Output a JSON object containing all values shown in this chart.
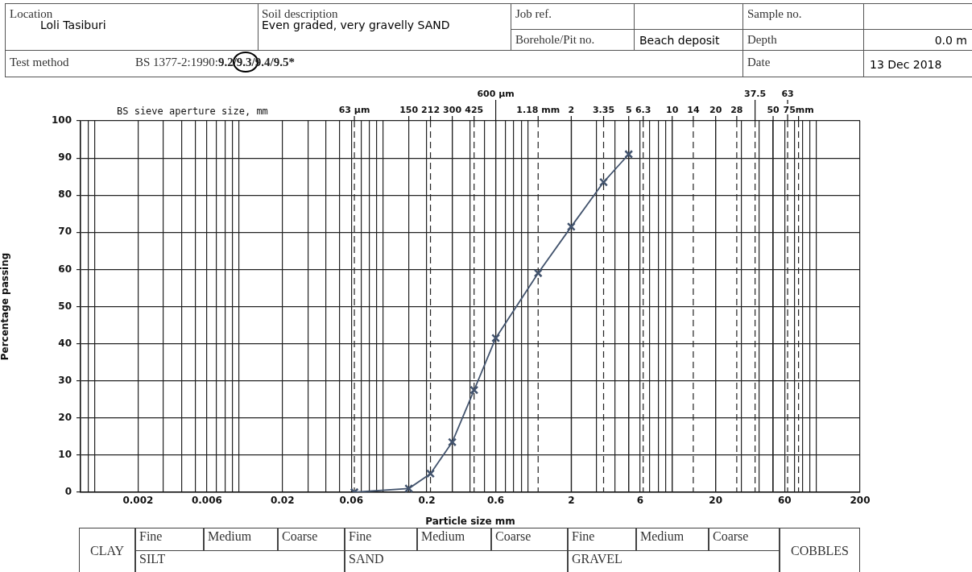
{
  "chart_data": {
    "type": "line",
    "xlabel": "Particle size mm",
    "ylabel": "Percentage passing",
    "log": "x",
    "grid": true,
    "legend": false,
    "marker": "cross",
    "line_style": "solid",
    "xlim": [
      0.0008,
      200
    ],
    "ylim": [
      0,
      100
    ],
    "xticks": [
      {
        "value": 0.0008,
        "label": null
      },
      {
        "value": 0.0009,
        "label": null
      },
      {
        "value": 0.001,
        "label": null
      },
      0.002,
      {
        "value": 0.003,
        "label": null
      },
      {
        "value": 0.004,
        "label": null
      },
      {
        "value": 0.005,
        "label": null
      },
      0.006,
      {
        "value": 0.007,
        "label": null
      },
      {
        "value": 0.008,
        "label": null
      },
      {
        "value": 0.009,
        "label": null
      },
      {
        "value": 0.01,
        "label": null
      },
      0.02,
      {
        "value": 0.03,
        "label": null
      },
      {
        "value": 0.04,
        "label": null
      },
      {
        "value": 0.05,
        "label": null
      },
      0.06,
      {
        "value": 0.07,
        "label": null
      },
      {
        "value": 0.08,
        "label": null
      },
      {
        "value": 0.09,
        "label": null
      },
      {
        "value": 0.1,
        "label": null
      },
      0.2,
      {
        "value": 0.3,
        "label": null
      },
      {
        "value": 0.4,
        "label": null
      },
      {
        "value": 0.5,
        "label": null
      },
      0.6,
      {
        "value": 0.7,
        "label": null
      },
      {
        "value": 0.8,
        "label": null
      },
      {
        "value": 0.9,
        "label": null
      },
      {
        "value": 1,
        "label": null
      },
      2,
      {
        "value": 3,
        "label": null
      },
      {
        "value": 4,
        "label": null
      },
      {
        "value": 5,
        "label": null
      },
      6,
      {
        "value": 7,
        "label": null
      },
      {
        "value": 8,
        "label": null
      },
      {
        "value": 9,
        "label": null
      },
      {
        "value": 10,
        "label": null
      },
      20,
      {
        "value": 30,
        "label": null
      },
      {
        "value": 40,
        "label": null
      },
      {
        "value": 50,
        "label": null
      },
      60,
      {
        "value": 70,
        "label": null
      },
      {
        "value": 80,
        "label": null
      },
      {
        "value": 90,
        "label": null
      },
      {
        "value": 100,
        "label": null
      },
      200
    ],
    "yticks": [
      0,
      10,
      20,
      30,
      40,
      50,
      60,
      70,
      80,
      90,
      100
    ],
    "ref_lines": [
      {
        "axis": "x",
        "value": 0.063,
        "label": "63 µm",
        "line_style": "dashed"
      },
      {
        "axis": "x",
        "value": 0.15,
        "label": "150",
        "line_style": "solid"
      },
      {
        "axis": "x",
        "value": 0.212,
        "label": "212",
        "line_style": "dashed"
      },
      {
        "axis": "x",
        "value": 0.3,
        "label": "300",
        "line_style": "solid"
      },
      {
        "axis": "x",
        "value": 0.425,
        "label": "425",
        "line_style": "dashed"
      },
      {
        "axis": "x",
        "value": 0.6,
        "label": "600 µm",
        "line_style": "solid"
      },
      {
        "axis": "x",
        "value": 1.18,
        "label": "1.18 mm",
        "line_style": "dashed"
      },
      {
        "axis": "x",
        "value": 2,
        "label": "2",
        "line_style": "solid"
      },
      {
        "axis": "x",
        "value": 3.35,
        "label": "3.35",
        "line_style": "dashed"
      },
      {
        "axis": "x",
        "value": 5,
        "label": "5",
        "line_style": "solid"
      },
      {
        "axis": "x",
        "value": 6.3,
        "label": "6.3",
        "line_style": "dashed"
      },
      {
        "axis": "x",
        "value": 10,
        "label": "10",
        "line_style": "solid"
      },
      {
        "axis": "x",
        "value": 14,
        "label": "14",
        "line_style": "dashed"
      },
      {
        "axis": "x",
        "value": 20,
        "label": "20",
        "line_style": "solid"
      },
      {
        "axis": "x",
        "value": 28,
        "label": "28",
        "line_style": "dashed"
      },
      {
        "axis": "x",
        "value": 37.5,
        "label": "37.5",
        "line_style": "dashed"
      },
      {
        "axis": "x",
        "value": 50,
        "label": "50",
        "line_style": "solid"
      },
      {
        "axis": "x",
        "value": 63,
        "label": "63",
        "line_style": "dashed"
      },
      {
        "axis": "x",
        "value": 75,
        "label": "75mm",
        "line_style": "dashed"
      }
    ],
    "x": [
      0.063,
      0.15,
      0.212,
      0.3,
      0.425,
      0.6,
      1.18,
      2,
      3.35,
      5
    ],
    "series": [
      {
        "color": "#42536d",
        "values": [
          0,
          1,
          5,
          13.5,
          27.5,
          41.5,
          59,
          71.5,
          83.5,
          91
        ]
      }
    ],
    "annotations": [
      "Location",
      "Loli Tasiburi",
      "Soil description",
      "Even graded, very gravelly SAND",
      "Job ref.",
      "Borehole/Pit no.",
      "Beach deposit",
      "Sample no.",
      "Depth",
      "0.0 m",
      "Test method",
      "BS 1377-2:1990:9.2/9.3/9.4/9.5*",
      "Date",
      "13 Dec 2018",
      "CLAY",
      "Fine",
      "Medium",
      "Coarse",
      "SILT",
      "Fine",
      "Medium",
      "Coarse",
      "SAND",
      "Fine",
      "Medium",
      "Coarse",
      "GRAVEL",
      "COBBLES",
      "BS sieve aperture size, mm"
    ]
  }
}
